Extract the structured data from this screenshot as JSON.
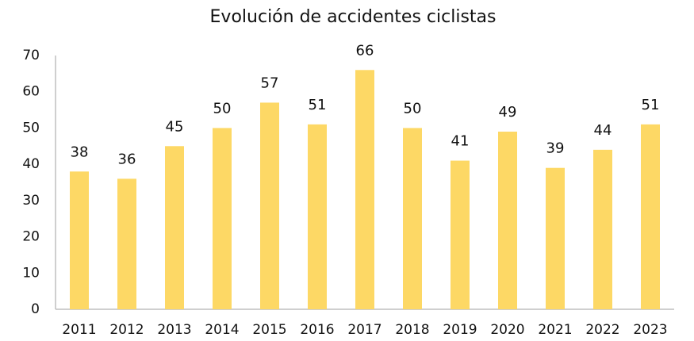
{
  "chart_data": {
    "type": "bar",
    "title": "Evolución de accidentes ciclistas",
    "categories": [
      "2011",
      "2012",
      "2013",
      "2014",
      "2015",
      "2016",
      "2017",
      "2018",
      "2019",
      "2020",
      "2021",
      "2022",
      "2023"
    ],
    "values": [
      38,
      36,
      45,
      50,
      57,
      51,
      66,
      50,
      41,
      49,
      39,
      44,
      51
    ],
    "color": "#fdd865",
    "ylim": [
      0,
      70
    ],
    "yticks": [
      0,
      10,
      20,
      30,
      40,
      50,
      60,
      70
    ],
    "grid": false
  }
}
